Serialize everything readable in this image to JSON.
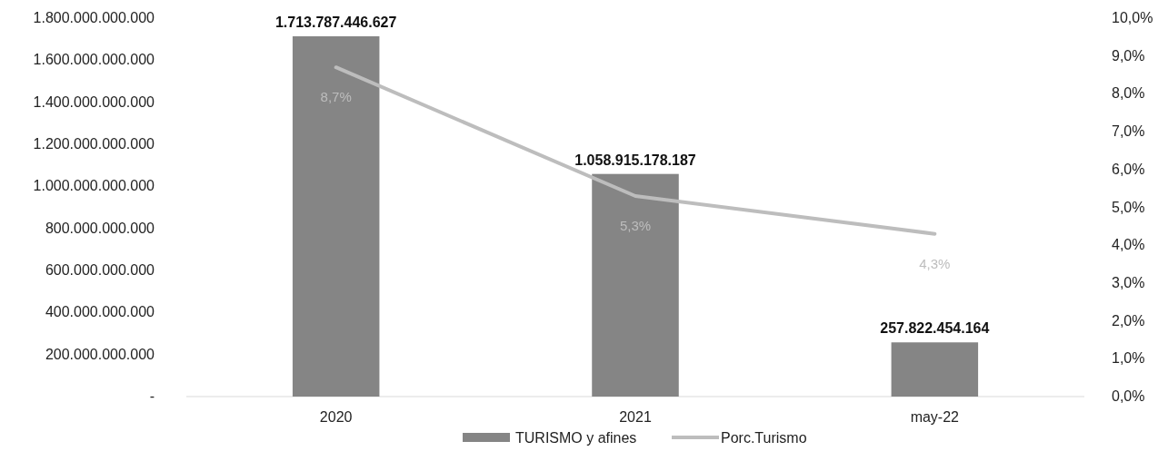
{
  "chart_data": {
    "type": "bar",
    "categories": [
      "2020",
      "2021",
      "may-22"
    ],
    "series": [
      {
        "name": "TURISMO y afines",
        "color": "#858585",
        "values": [
          1713787446627,
          1058915178187,
          257822454164
        ],
        "value_labels": [
          "1.713.787.446.627",
          "1.058.915.178.187",
          "257.822.454.164"
        ]
      },
      {
        "name": "Porc.Turismo",
        "type": "line",
        "axis": "y2",
        "color": "#bdbdbd",
        "values": [
          8.7,
          5.3,
          4.3
        ],
        "value_labels": [
          "8,7%",
          "5,3%",
          "4,3%"
        ]
      }
    ],
    "ylim": [
      0,
      1800000000000
    ],
    "yticks": [
      {
        "value": 0,
        "label": "-"
      },
      {
        "value": 200000000000,
        "label": "200.000.000.000"
      },
      {
        "value": 400000000000,
        "label": "400.000.000.000"
      },
      {
        "value": 600000000000,
        "label": "600.000.000.000"
      },
      {
        "value": 800000000000,
        "label": "800.000.000.000"
      },
      {
        "value": 1000000000000,
        "label": "1.000.000.000.000"
      },
      {
        "value": 1200000000000,
        "label": "1.200.000.000.000"
      },
      {
        "value": 1400000000000,
        "label": "1.400.000.000.000"
      },
      {
        "value": 1600000000000,
        "label": "1.600.000.000.000"
      },
      {
        "value": 1800000000000,
        "label": "1.800.000.000.000"
      }
    ],
    "y2lim": [
      0,
      10
    ],
    "y2ticks": [
      {
        "value": 0,
        "label": "0,0%"
      },
      {
        "value": 1,
        "label": "1,0%"
      },
      {
        "value": 2,
        "label": "2,0%"
      },
      {
        "value": 3,
        "label": "3,0%"
      },
      {
        "value": 4,
        "label": "4,0%"
      },
      {
        "value": 5,
        "label": "5,0%"
      },
      {
        "value": 6,
        "label": "6,0%"
      },
      {
        "value": 7,
        "label": "7,0%"
      },
      {
        "value": 8,
        "label": "8,0%"
      },
      {
        "value": 9,
        "label": "9,0%"
      },
      {
        "value": 10,
        "label": "10,0%"
      }
    ],
    "legend": "bottom",
    "grid": false,
    "marker": "none"
  }
}
